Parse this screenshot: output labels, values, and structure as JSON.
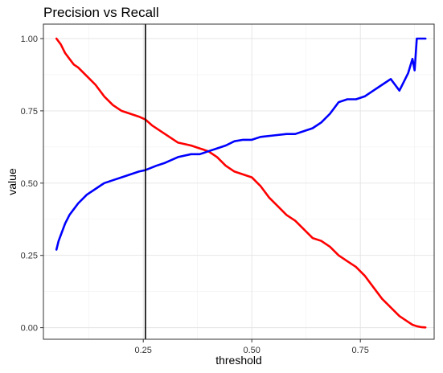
{
  "chart_data": {
    "type": "line",
    "title": "Precision vs Recall",
    "xlabel": "threshold",
    "ylabel": "value",
    "xlim": [
      0.02,
      0.92
    ],
    "ylim": [
      -0.04,
      1.05
    ],
    "x_ticks": [
      0.25,
      0.5,
      0.75
    ],
    "x_tick_labels": [
      "0.25",
      "0.50",
      "0.75"
    ],
    "y_ticks": [
      0.0,
      0.25,
      0.5,
      0.75,
      1.0
    ],
    "y_tick_labels": [
      "0.00",
      "0.25",
      "0.50",
      "0.75",
      "1.00"
    ],
    "grid": true,
    "legend": "none",
    "vline": {
      "x": 0.255,
      "color": "#000000"
    },
    "series": [
      {
        "color": "#ff0000",
        "x": [
          0.05,
          0.06,
          0.07,
          0.08,
          0.09,
          0.1,
          0.12,
          0.14,
          0.16,
          0.18,
          0.2,
          0.22,
          0.24,
          0.255,
          0.27,
          0.3,
          0.33,
          0.36,
          0.38,
          0.4,
          0.42,
          0.44,
          0.46,
          0.48,
          0.5,
          0.52,
          0.54,
          0.56,
          0.58,
          0.6,
          0.62,
          0.64,
          0.66,
          0.68,
          0.7,
          0.72,
          0.74,
          0.76,
          0.78,
          0.8,
          0.82,
          0.84,
          0.86,
          0.87,
          0.88,
          0.89,
          0.9
        ],
        "y": [
          1.0,
          0.98,
          0.95,
          0.93,
          0.91,
          0.9,
          0.87,
          0.84,
          0.8,
          0.77,
          0.75,
          0.74,
          0.73,
          0.72,
          0.7,
          0.67,
          0.64,
          0.63,
          0.62,
          0.61,
          0.59,
          0.56,
          0.54,
          0.53,
          0.52,
          0.49,
          0.45,
          0.42,
          0.39,
          0.37,
          0.34,
          0.31,
          0.3,
          0.28,
          0.25,
          0.23,
          0.21,
          0.18,
          0.14,
          0.1,
          0.07,
          0.04,
          0.02,
          0.01,
          0.005,
          0.002,
          0.001
        ]
      },
      {
        "color": "#0000ff",
        "x": [
          0.05,
          0.055,
          0.06,
          0.07,
          0.08,
          0.09,
          0.1,
          0.12,
          0.14,
          0.16,
          0.18,
          0.2,
          0.22,
          0.24,
          0.255,
          0.28,
          0.3,
          0.33,
          0.36,
          0.38,
          0.4,
          0.42,
          0.44,
          0.46,
          0.48,
          0.5,
          0.52,
          0.55,
          0.58,
          0.6,
          0.62,
          0.64,
          0.66,
          0.68,
          0.7,
          0.72,
          0.74,
          0.76,
          0.78,
          0.8,
          0.82,
          0.83,
          0.84,
          0.85,
          0.86,
          0.87,
          0.875,
          0.88,
          0.885,
          0.89,
          0.9
        ],
        "y": [
          0.27,
          0.3,
          0.32,
          0.36,
          0.39,
          0.41,
          0.43,
          0.46,
          0.48,
          0.5,
          0.51,
          0.52,
          0.53,
          0.54,
          0.545,
          0.56,
          0.57,
          0.59,
          0.6,
          0.6,
          0.61,
          0.62,
          0.63,
          0.645,
          0.65,
          0.65,
          0.66,
          0.665,
          0.67,
          0.67,
          0.68,
          0.69,
          0.71,
          0.74,
          0.78,
          0.79,
          0.79,
          0.8,
          0.82,
          0.84,
          0.86,
          0.84,
          0.82,
          0.85,
          0.88,
          0.93,
          0.89,
          1.0,
          1.0,
          1.0,
          1.0
        ]
      }
    ]
  }
}
